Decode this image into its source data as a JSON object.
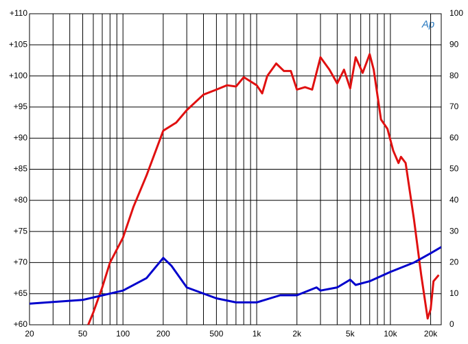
{
  "chart_data": {
    "type": "line",
    "logo": "Ap",
    "xscale": "log",
    "grid": true,
    "xlim": [
      20,
      24000
    ],
    "xticks": [
      20,
      50,
      100,
      200,
      500,
      {
        "value": 1000,
        "label": "1k"
      },
      {
        "value": 2000,
        "label": "2k"
      },
      {
        "value": 5000,
        "label": "5k"
      },
      {
        "value": 10000,
        "label": "10k"
      },
      {
        "value": 20000,
        "label": "20k"
      }
    ],
    "xgrid": [
      20,
      30,
      40,
      50,
      60,
      70,
      80,
      90,
      100,
      200,
      300,
      400,
      500,
      600,
      700,
      800,
      900,
      1000,
      2000,
      3000,
      4000,
      5000,
      6000,
      7000,
      8000,
      9000,
      10000,
      20000
    ],
    "ylim": [
      60,
      110
    ],
    "yticks": [
      {
        "value": 60,
        "label": "+60"
      },
      {
        "value": 65,
        "label": "+65"
      },
      {
        "value": 70,
        "label": "+70"
      },
      {
        "value": 75,
        "label": "+75"
      },
      {
        "value": 80,
        "label": "+80"
      },
      {
        "value": 85,
        "label": "+85"
      },
      {
        "value": 90,
        "label": "+90"
      },
      {
        "value": 95,
        "label": "+95"
      },
      {
        "value": 100,
        "label": "+100"
      },
      {
        "value": 105,
        "label": "+105"
      },
      {
        "value": 110,
        "label": "+110"
      }
    ],
    "y2lim": [
      0,
      100
    ],
    "y2ticks": [
      0,
      10,
      20,
      30,
      40,
      50,
      60,
      70,
      80,
      90,
      100
    ],
    "series": [
      {
        "color": "#e01010",
        "x": [
          55,
          60,
          70,
          80,
          100,
          120,
          150,
          200,
          250,
          300,
          400,
          500,
          600,
          700,
          800,
          1000,
          1100,
          1200,
          1400,
          1600,
          1800,
          2000,
          2300,
          2600,
          3000,
          3500,
          4000,
          4500,
          5000,
          5500,
          6200,
          7000,
          7500,
          8500,
          9500,
          10500,
          11500,
          12000,
          13000,
          15000,
          17000,
          19000,
          20000,
          21000,
          23000
        ],
        "values": [
          60,
          62,
          66,
          70,
          74,
          79,
          84,
          91.2,
          92.5,
          94.5,
          97,
          97.8,
          98.5,
          98.3,
          99.8,
          98.5,
          97.2,
          100,
          102,
          100.8,
          100.8,
          97.8,
          98.2,
          97.8,
          103,
          101,
          98.8,
          101,
          98,
          103,
          100.5,
          103.5,
          101,
          93,
          91.5,
          88,
          86,
          87,
          86,
          77,
          68,
          61,
          62.5,
          67,
          68
        ]
      },
      {
        "color": "#0000cc",
        "axis": "y2",
        "x": [
          20,
          50,
          100,
          150,
          200,
          230,
          300,
          500,
          700,
          1000,
          1500,
          2000,
          2800,
          3000,
          4000,
          5000,
          5500,
          7000,
          10000,
          15000,
          20000,
          24000
        ],
        "values": [
          6.8,
          8,
          11,
          15,
          21.5,
          19,
          12,
          8.5,
          7.2,
          7.2,
          9.5,
          9.5,
          12,
          11,
          12,
          14.5,
          12.8,
          14,
          17,
          20,
          23,
          25
        ]
      }
    ]
  }
}
